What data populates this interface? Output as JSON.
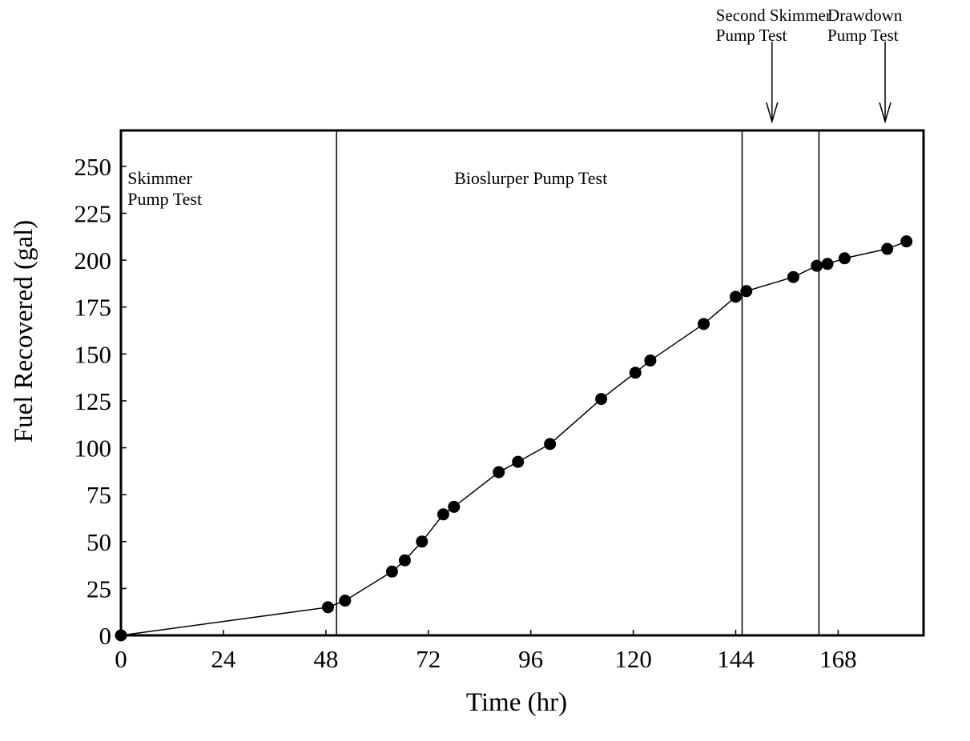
{
  "chart_data": {
    "type": "scatter",
    "title": "",
    "xlabel": "Time (hr)",
    "ylabel": "Fuel Recovered (gal)",
    "xlim": [
      0,
      188
    ],
    "ylim": [
      0,
      270
    ],
    "x_ticks": [
      0,
      24,
      48,
      72,
      96,
      120,
      144,
      168
    ],
    "y_ticks": [
      0,
      25,
      50,
      75,
      100,
      125,
      150,
      175,
      200,
      225,
      250
    ],
    "grid": false,
    "series": [
      {
        "name": "",
        "connected": true,
        "marker": "filled-circle",
        "points": [
          {
            "x": 0,
            "y": 0
          },
          {
            "x": 48.5,
            "y": 15
          },
          {
            "x": 52.5,
            "y": 18.5
          },
          {
            "x": 63.5,
            "y": 34
          },
          {
            "x": 66.5,
            "y": 40
          },
          {
            "x": 70.5,
            "y": 50
          },
          {
            "x": 75.5,
            "y": 64.5
          },
          {
            "x": 78,
            "y": 68.5
          },
          {
            "x": 88.5,
            "y": 87
          },
          {
            "x": 93,
            "y": 92.5
          },
          {
            "x": 100.5,
            "y": 102
          },
          {
            "x": 112.5,
            "y": 126
          },
          {
            "x": 120.5,
            "y": 140
          },
          {
            "x": 124,
            "y": 146.5
          },
          {
            "x": 136.5,
            "y": 166
          },
          {
            "x": 144,
            "y": 180.5
          },
          {
            "x": 146.5,
            "y": 183.5
          },
          {
            "x": 157.5,
            "y": 191
          },
          {
            "x": 163,
            "y": 197
          },
          {
            "x": 165.5,
            "y": 198
          },
          {
            "x": 169.5,
            "y": 201
          },
          {
            "x": 179.5,
            "y": 206
          },
          {
            "x": 184,
            "y": 210
          }
        ]
      }
    ],
    "phase_dividers": [
      50.5,
      145.5,
      163.5
    ],
    "phase_labels": [
      {
        "lines": [
          "Skimmer",
          "Pump Test"
        ],
        "x": 10
      },
      {
        "lines": [
          "Bioslurper Pump Test"
        ],
        "x": 96
      }
    ],
    "top_annotations": [
      {
        "lines": [
          "Second Skimmer",
          "Pump Test"
        ],
        "arrow_x": 152.5
      },
      {
        "lines": [
          "Drawdown",
          "Pump Test"
        ],
        "arrow_x": 179
      }
    ]
  }
}
